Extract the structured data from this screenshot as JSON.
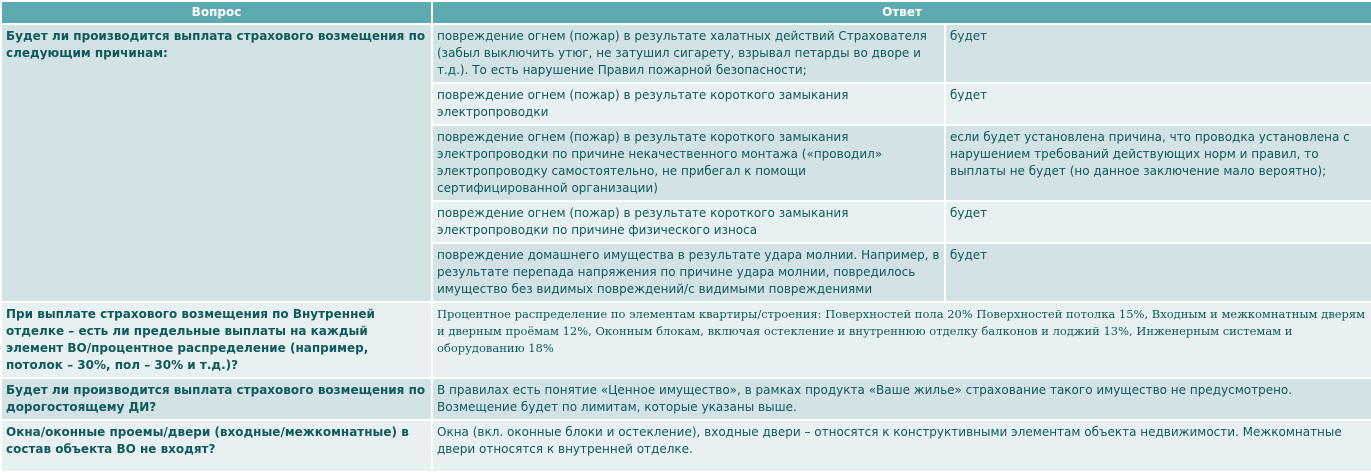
{
  "header": {
    "question": "Вопрос",
    "answer": "Ответ"
  },
  "rows": [
    {
      "question": "Будет ли производится выплата страхового возмещения по следующим причинам:",
      "items": [
        {
          "case": "повреждение огнем (пожар) в результате халатных действий Страхователя (забыл выключить утюг, не затушил сигарету, взрывал петарды во дворе и т.д.). То есть нарушение Правил пожарной безопасности;",
          "answer": "будет"
        },
        {
          "case": "повреждение огнем (пожар) в результате короткого замыкания электропроводки",
          "answer": "будет"
        },
        {
          "case": "повреждение огнем (пожар) в рeзультате короткого замыкания электропроводки по причине некачественного монтажа («проводил» электропроводку самостоятельно, не прибегал к помощи сертифицированной организации)",
          "answer": "если будет установлена причина, что проводка установлена с нарушением требований действующих норм и правил, то выплаты не будет (но данное заключение мало вероятно);"
        },
        {
          "case": "повреждение огнем (пожар) в результате короткого замыкания электропроводки по причине физического износа",
          "answer": "будет"
        },
        {
          "case": "повреждение домашнего имущества в результате удара молнии. Например, в результате перепада напряжения по причине удара молнии, повредилось имущество без видимых повреждений/с видимыми повреждениями",
          "answer": "будет"
        }
      ]
    },
    {
      "question": "При выплате страхового возмещения по Внутренней отделке – есть ли предельные выплаты на каждый элемент ВО/процентное распределение (например, потолок – 30%, пол – 30% и т.д.)?",
      "answer": "Процентное распределение по элементам квартиры/строения: Поверхностей пола 20% Поверхностей потолка 15%, Входным и межкомнатным дверям и дверным проёмам 12%, Оконным блокам, включая остекление и внутреннюю отделку балконов и лоджий 13%, Инженерным системам и оборудованию 18%"
    },
    {
      "question": "Будет ли производится выплата страхового возмещения по дорогостоящему ДИ?",
      "answer": "В правилах есть понятие «Ценное имущество», в рамках продукта «Ваше жилье» страхование такого имущество не предусмотрено. Возмещение будет по лимитам, которые указаны выше."
    },
    {
      "question": "Окна/оконные проемы/двери (входные/межкомнатные) в состав объекта ВО не входят?",
      "answer": "Окна (вкл. оконные блоки и остекление), входные двери – относятся к конструктивными элементам объекта недвижимости. Межкомнатные двери относятся к внутренней отделке."
    }
  ]
}
